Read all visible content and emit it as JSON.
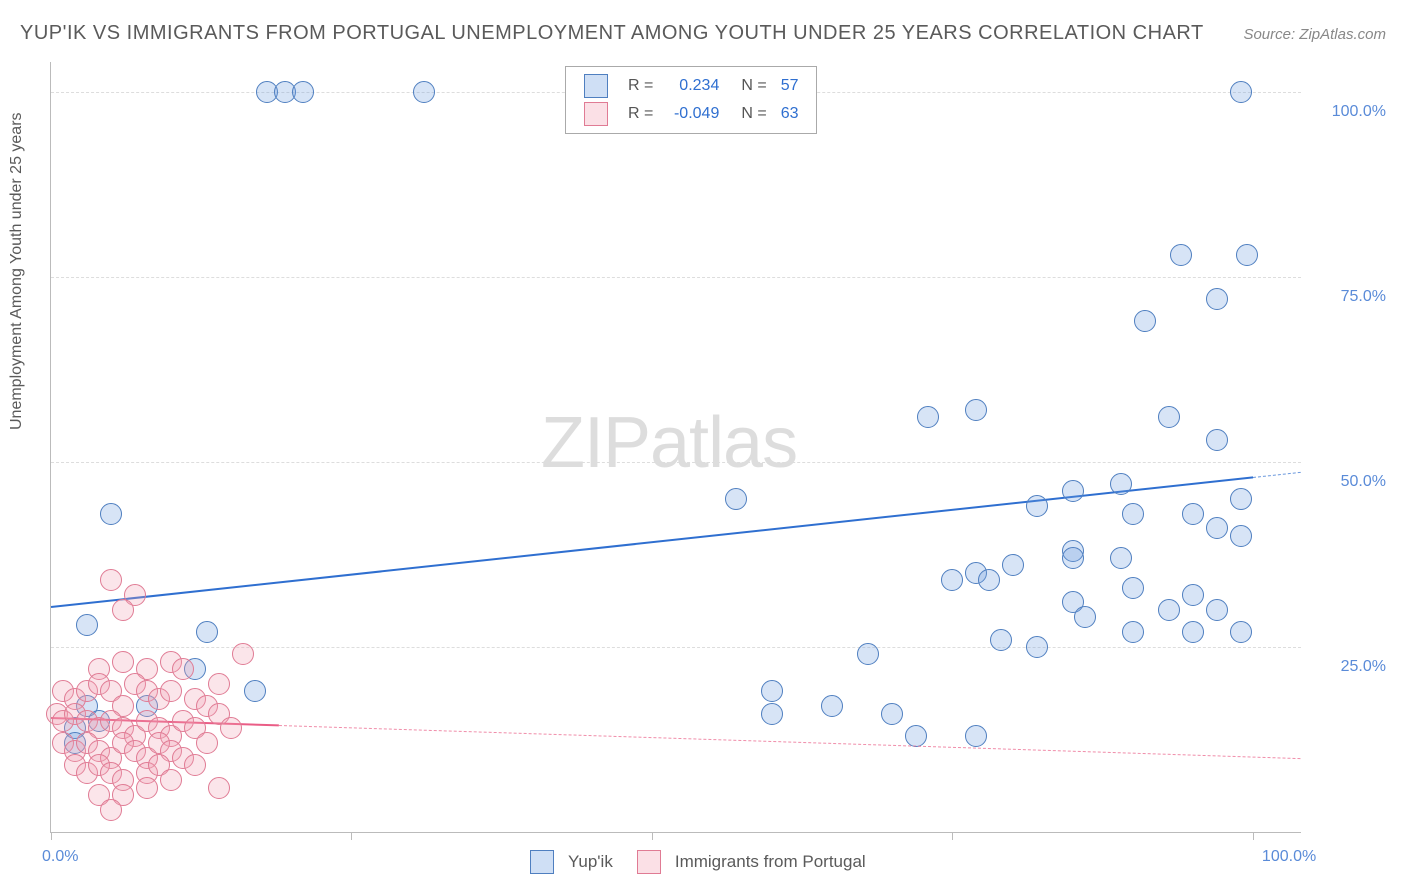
{
  "title": "YUP'IK VS IMMIGRANTS FROM PORTUGAL UNEMPLOYMENT AMONG YOUTH UNDER 25 YEARS CORRELATION CHART",
  "source": "Source: ZipAtlas.com",
  "ylabel": "Unemployment Among Youth under 25 years",
  "watermark_a": "ZIP",
  "watermark_b": "atlas",
  "chart": {
    "type": "scatter",
    "background_color": "#ffffff",
    "grid_color": "#dddddd",
    "axis_color": "#bbbbbb",
    "tick_label_color": "#5a8bd8",
    "label_color": "#5a5a5a",
    "title_color": "#5a5a5a",
    "title_fontsize": 20,
    "label_fontsize": 16,
    "tick_fontsize": 16,
    "xlim": [
      0,
      104
    ],
    "ylim": [
      0,
      104
    ],
    "y_ticks": [
      25,
      50,
      75,
      100
    ],
    "y_tick_labels": [
      "25.0%",
      "50.0%",
      "75.0%",
      "100.0%"
    ],
    "x_ticks": [
      0,
      25,
      50,
      75,
      100
    ],
    "x_tick_labels_sparse": {
      "0": "0.0%",
      "100": "100.0%"
    },
    "marker_radius": 10,
    "marker_stroke_width": 1.5,
    "marker_fill_opacity": 0.28,
    "series": [
      {
        "name": "Yup'ik",
        "color": "#6f9fe0",
        "stroke": "#4f7fc0",
        "trend": {
          "x1": 0,
          "y1": 30.5,
          "x2": 100,
          "y2": 48,
          "color": "#2f6fd0",
          "width": 2.2,
          "dash": "solid",
          "extend_x2": 104,
          "extend_dash": "6,5"
        },
        "R": "0.234",
        "N": "57",
        "points": [
          [
            18,
            100
          ],
          [
            19.5,
            100
          ],
          [
            21,
            100
          ],
          [
            31,
            100
          ],
          [
            99,
            100
          ],
          [
            94,
            78
          ],
          [
            99.5,
            78
          ],
          [
            97,
            72
          ],
          [
            91,
            69
          ],
          [
            73,
            56
          ],
          [
            77,
            57
          ],
          [
            93,
            56
          ],
          [
            97,
            53
          ],
          [
            57,
            45
          ],
          [
            85,
            46
          ],
          [
            89,
            47
          ],
          [
            82,
            44
          ],
          [
            99,
            45
          ],
          [
            5,
            43
          ],
          [
            90,
            43
          ],
          [
            95,
            43
          ],
          [
            97,
            41
          ],
          [
            99,
            40
          ],
          [
            85,
            38
          ],
          [
            77,
            35
          ],
          [
            80,
            36
          ],
          [
            89,
            37
          ],
          [
            85,
            37
          ],
          [
            75,
            34
          ],
          [
            78,
            34
          ],
          [
            90,
            33
          ],
          [
            95,
            32
          ],
          [
            3,
            28
          ],
          [
            85,
            31
          ],
          [
            93,
            30
          ],
          [
            97,
            30
          ],
          [
            86,
            29
          ],
          [
            13,
            27
          ],
          [
            68,
            24
          ],
          [
            79,
            26
          ],
          [
            82,
            25
          ],
          [
            90,
            27
          ],
          [
            95,
            27
          ],
          [
            99,
            27
          ],
          [
            17,
            19
          ],
          [
            60,
            16
          ],
          [
            60,
            19
          ],
          [
            65,
            17
          ],
          [
            72,
            13
          ],
          [
            77,
            13
          ],
          [
            70,
            16
          ],
          [
            3,
            17
          ],
          [
            4,
            15
          ],
          [
            2,
            14
          ],
          [
            12,
            22
          ],
          [
            8,
            17
          ],
          [
            2,
            12
          ]
        ]
      },
      {
        "name": "Immigrants from Portugal",
        "color": "#f2a3b5",
        "stroke": "#e07b94",
        "trend": {
          "x1": 0,
          "y1": 15.5,
          "x2": 19,
          "y2": 14.5,
          "color": "#ea5d86",
          "width": 2,
          "dash": "solid",
          "extend_x2": 104,
          "extend_dash": "7,6"
        },
        "R": "-0.049",
        "N": "63",
        "points": [
          [
            5,
            34
          ],
          [
            7,
            32
          ],
          [
            6,
            30
          ],
          [
            4,
            22
          ],
          [
            6,
            23
          ],
          [
            8,
            22
          ],
          [
            10,
            23
          ],
          [
            11,
            22
          ],
          [
            14,
            20
          ],
          [
            16,
            24
          ],
          [
            1,
            19
          ],
          [
            2,
            18
          ],
          [
            3,
            19
          ],
          [
            4,
            20
          ],
          [
            5,
            19
          ],
          [
            6,
            17
          ],
          [
            7,
            20
          ],
          [
            8,
            19
          ],
          [
            9,
            18
          ],
          [
            10,
            19
          ],
          [
            12,
            18
          ],
          [
            13,
            17
          ],
          [
            0.5,
            16
          ],
          [
            1,
            15
          ],
          [
            2,
            16
          ],
          [
            3,
            15
          ],
          [
            4,
            14
          ],
          [
            5,
            15
          ],
          [
            6,
            14
          ],
          [
            7,
            13
          ],
          [
            8,
            15
          ],
          [
            9,
            14
          ],
          [
            10,
            13
          ],
          [
            11,
            15
          ],
          [
            12,
            14
          ],
          [
            14,
            16
          ],
          [
            15,
            14
          ],
          [
            1,
            12
          ],
          [
            2,
            11
          ],
          [
            3,
            12
          ],
          [
            4,
            11
          ],
          [
            5,
            10
          ],
          [
            6,
            12
          ],
          [
            7,
            11
          ],
          [
            8,
            10
          ],
          [
            9,
            12
          ],
          [
            10,
            11
          ],
          [
            11,
            10
          ],
          [
            13,
            12
          ],
          [
            2,
            9
          ],
          [
            3,
            8
          ],
          [
            4,
            9
          ],
          [
            5,
            8
          ],
          [
            6,
            7
          ],
          [
            8,
            8
          ],
          [
            9,
            9
          ],
          [
            10,
            7
          ],
          [
            12,
            9
          ],
          [
            4,
            5
          ],
          [
            6,
            5
          ],
          [
            8,
            6
          ],
          [
            14,
            6
          ],
          [
            5,
            3
          ]
        ]
      }
    ],
    "legend_stats": {
      "label_R": "R =",
      "label_N": "N ="
    },
    "bottom_legend": [
      {
        "label": "Yup'ik",
        "color": "#6f9fe0",
        "stroke": "#4f7fc0"
      },
      {
        "label": "Immigrants from Portugal",
        "color": "#f2a3b5",
        "stroke": "#e07b94"
      }
    ]
  }
}
